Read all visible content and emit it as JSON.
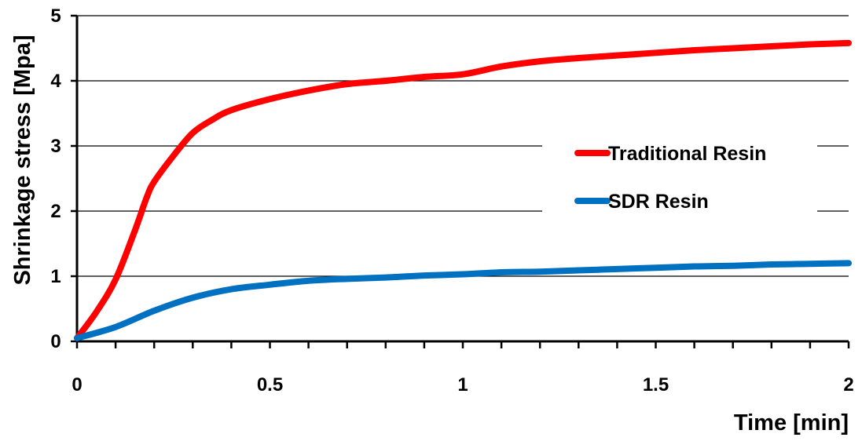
{
  "chart_data": {
    "type": "line",
    "title": "",
    "xlabel": "Time [min]",
    "ylabel": "Shrinkage stress [Mpa]",
    "xlim": [
      0,
      2
    ],
    "ylim": [
      0,
      5
    ],
    "x_ticks": [
      0,
      0.5,
      1,
      1.5,
      2
    ],
    "x_tick_labels": [
      "0",
      "0.5",
      "1",
      "1.5",
      "2"
    ],
    "x_minor_tick_step": 0.1,
    "y_ticks": [
      0,
      1,
      2,
      3,
      4,
      5
    ],
    "y_tick_labels": [
      "0",
      "1",
      "2",
      "3",
      "4",
      "5"
    ],
    "grid": "horizontal",
    "legend_position": "right",
    "series": [
      {
        "name": "Traditional Resin",
        "color": "#ff0000",
        "x": [
          0,
          0.05,
          0.1,
          0.15,
          0.18,
          0.2,
          0.25,
          0.3,
          0.35,
          0.4,
          0.5,
          0.6,
          0.7,
          0.8,
          0.9,
          1.0,
          1.1,
          1.2,
          1.3,
          1.4,
          1.5,
          1.6,
          1.7,
          1.8,
          1.9,
          2.0
        ],
        "y": [
          0.05,
          0.45,
          0.95,
          1.7,
          2.2,
          2.45,
          2.85,
          3.2,
          3.4,
          3.55,
          3.72,
          3.85,
          3.95,
          4.0,
          4.06,
          4.1,
          4.22,
          4.3,
          4.35,
          4.39,
          4.43,
          4.47,
          4.5,
          4.53,
          4.56,
          4.58
        ]
      },
      {
        "name": "SDR Resin",
        "color": "#0070c0",
        "x": [
          0,
          0.1,
          0.2,
          0.3,
          0.4,
          0.5,
          0.6,
          0.7,
          0.8,
          0.9,
          1.0,
          1.1,
          1.2,
          1.3,
          1.4,
          1.5,
          1.6,
          1.7,
          1.8,
          1.9,
          2.0
        ],
        "y": [
          0.05,
          0.22,
          0.47,
          0.67,
          0.8,
          0.87,
          0.93,
          0.96,
          0.98,
          1.01,
          1.03,
          1.06,
          1.07,
          1.09,
          1.11,
          1.13,
          1.15,
          1.16,
          1.18,
          1.19,
          1.2
        ]
      }
    ]
  }
}
